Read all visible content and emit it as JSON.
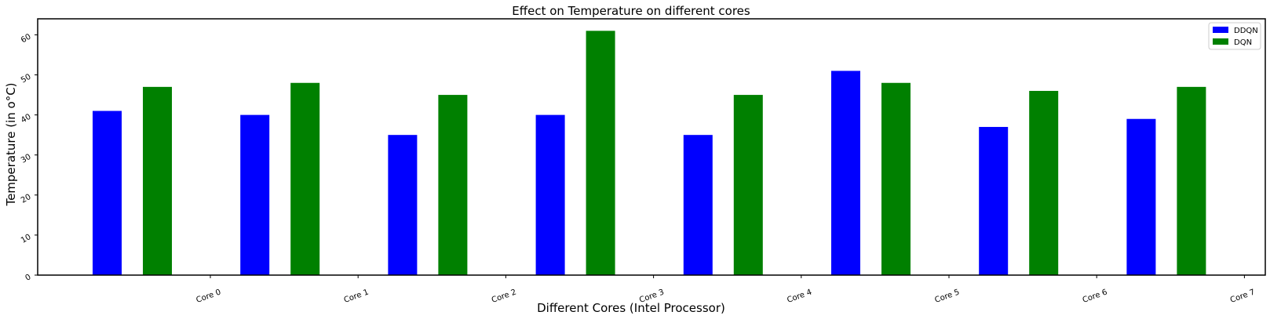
{
  "chart_data": {
    "type": "bar",
    "title": "Effect on Temperature  on different cores",
    "xlabel": "Different Cores (Intel Processor)",
    "ylabel": "Temperature (in o°C)",
    "categories": [
      "Core 0",
      "Core 1",
      "Core 2",
      "Core 3",
      "Core 4",
      "Core 5",
      "Core 6",
      "Core 7"
    ],
    "series": [
      {
        "name": "DDQN",
        "color": "#0000ff",
        "values": [
          41,
          40,
          35,
          40,
          35,
          51,
          37,
          39
        ]
      },
      {
        "name": "DQN",
        "color": "#008000",
        "values": [
          47,
          48,
          45,
          61,
          45,
          48,
          46,
          47
        ]
      }
    ],
    "ylim": [
      0,
      64
    ],
    "yticks": [
      0,
      10,
      20,
      30,
      40,
      50,
      60
    ],
    "grid": false,
    "legend_position": "top-right"
  }
}
